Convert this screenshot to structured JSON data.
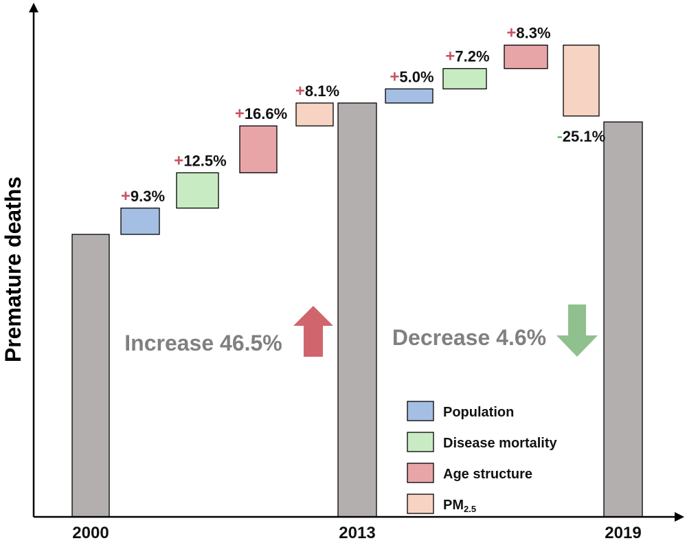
{
  "chart_data": {
    "type": "bar",
    "title": "",
    "ylabel": "Premature deaths",
    "xlabel": "",
    "y_index_base": 100,
    "ylim": [
      0,
      210
    ],
    "totals": [
      {
        "year": "2000",
        "value": 100
      },
      {
        "year": "2013",
        "value": 146.5
      },
      {
        "year": "2019",
        "value": 139.8
      }
    ],
    "contributions": [
      {
        "period": "2000-2013",
        "factor": "Population",
        "change": 9.3,
        "sign": "+",
        "label": "9.3%"
      },
      {
        "period": "2000-2013",
        "factor": "Disease mortality",
        "change": 12.5,
        "sign": "+",
        "label": "12.5%"
      },
      {
        "period": "2000-2013",
        "factor": "Age structure",
        "change": 16.6,
        "sign": "+",
        "label": "16.6%"
      },
      {
        "period": "2000-2013",
        "factor": "PM2.5",
        "change": 8.1,
        "sign": "+",
        "label": "8.1%"
      },
      {
        "period": "2013-2019",
        "factor": "Population",
        "change": 5.0,
        "sign": "+",
        "label": "5.0%"
      },
      {
        "period": "2013-2019",
        "factor": "Disease mortality",
        "change": 7.2,
        "sign": "+",
        "label": "7.2%"
      },
      {
        "period": "2013-2019",
        "factor": "Age structure",
        "change": 8.3,
        "sign": "+",
        "label": "8.3%"
      },
      {
        "period": "2013-2019",
        "factor": "PM2.5",
        "change": -25.1,
        "sign": "-",
        "label": "25.1%"
      }
    ],
    "annotations": [
      {
        "text": "Increase 46.5%",
        "direction": "up",
        "color": "#d0656e"
      },
      {
        "text": "Decrease 4.6%",
        "direction": "down",
        "color": "#8fc08d"
      }
    ],
    "legend": {
      "placement": "bottom-right",
      "items": [
        {
          "label": "Population",
          "color": "#a4bfe3"
        },
        {
          "label": "Disease mortality",
          "color": "#c9ebc3"
        },
        {
          "label": "Age structure",
          "color": "#e8a5a8"
        },
        {
          "label": "PM",
          "subscript": "2.5",
          "color": "#f6d3c3"
        }
      ]
    },
    "colors": {
      "total_bar": "#b3afae",
      "plus_sign": "#c8545f",
      "minus_sign": "#6cc069",
      "axis": "#000000"
    }
  }
}
